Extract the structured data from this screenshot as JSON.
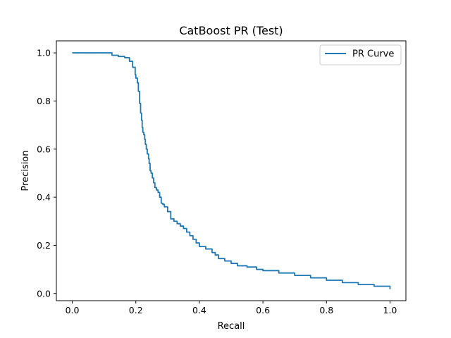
{
  "chart_data": {
    "type": "line",
    "title": "CatBoost PR (Test)",
    "xlabel": "Recall",
    "ylabel": "Precision",
    "xlim": [
      -0.05,
      1.05
    ],
    "ylim": [
      -0.03,
      1.05
    ],
    "xticks": [
      0.0,
      0.2,
      0.4,
      0.6,
      0.8,
      1.0
    ],
    "xtick_labels": [
      "0.0",
      "0.2",
      "0.4",
      "0.6",
      "0.8",
      "1.0"
    ],
    "yticks": [
      0.0,
      0.2,
      0.4,
      0.6,
      0.8,
      1.0
    ],
    "ytick_labels": [
      "0.0",
      "0.2",
      "0.4",
      "0.6",
      "0.8",
      "1.0"
    ],
    "grid": false,
    "legend_position": "top-right",
    "series": [
      {
        "name": "PR Curve",
        "color": "#1f77b4",
        "x": [
          0.0,
          0.12,
          0.125,
          0.14,
          0.145,
          0.16,
          0.165,
          0.175,
          0.18,
          0.19,
          0.198,
          0.2,
          0.205,
          0.208,
          0.212,
          0.215,
          0.218,
          0.22,
          0.222,
          0.225,
          0.228,
          0.23,
          0.233,
          0.236,
          0.24,
          0.242,
          0.245,
          0.248,
          0.252,
          0.256,
          0.26,
          0.265,
          0.27,
          0.275,
          0.28,
          0.285,
          0.29,
          0.3,
          0.31,
          0.32,
          0.33,
          0.34,
          0.35,
          0.36,
          0.37,
          0.38,
          0.39,
          0.4,
          0.42,
          0.44,
          0.45,
          0.46,
          0.48,
          0.5,
          0.52,
          0.55,
          0.58,
          0.6,
          0.65,
          0.7,
          0.75,
          0.8,
          0.85,
          0.9,
          0.95,
          1.0
        ],
        "y": [
          1.0,
          1.0,
          0.99,
          0.99,
          0.985,
          0.985,
          0.98,
          0.98,
          0.965,
          0.94,
          0.91,
          0.895,
          0.875,
          0.84,
          0.79,
          0.75,
          0.72,
          0.69,
          0.67,
          0.66,
          0.64,
          0.62,
          0.6,
          0.58,
          0.56,
          0.54,
          0.51,
          0.5,
          0.48,
          0.46,
          0.44,
          0.43,
          0.42,
          0.4,
          0.375,
          0.37,
          0.36,
          0.34,
          0.31,
          0.3,
          0.29,
          0.28,
          0.27,
          0.255,
          0.24,
          0.225,
          0.21,
          0.195,
          0.185,
          0.17,
          0.16,
          0.145,
          0.135,
          0.125,
          0.115,
          0.11,
          0.1,
          0.095,
          0.085,
          0.075,
          0.065,
          0.055,
          0.045,
          0.037,
          0.03,
          0.018
        ]
      }
    ]
  }
}
